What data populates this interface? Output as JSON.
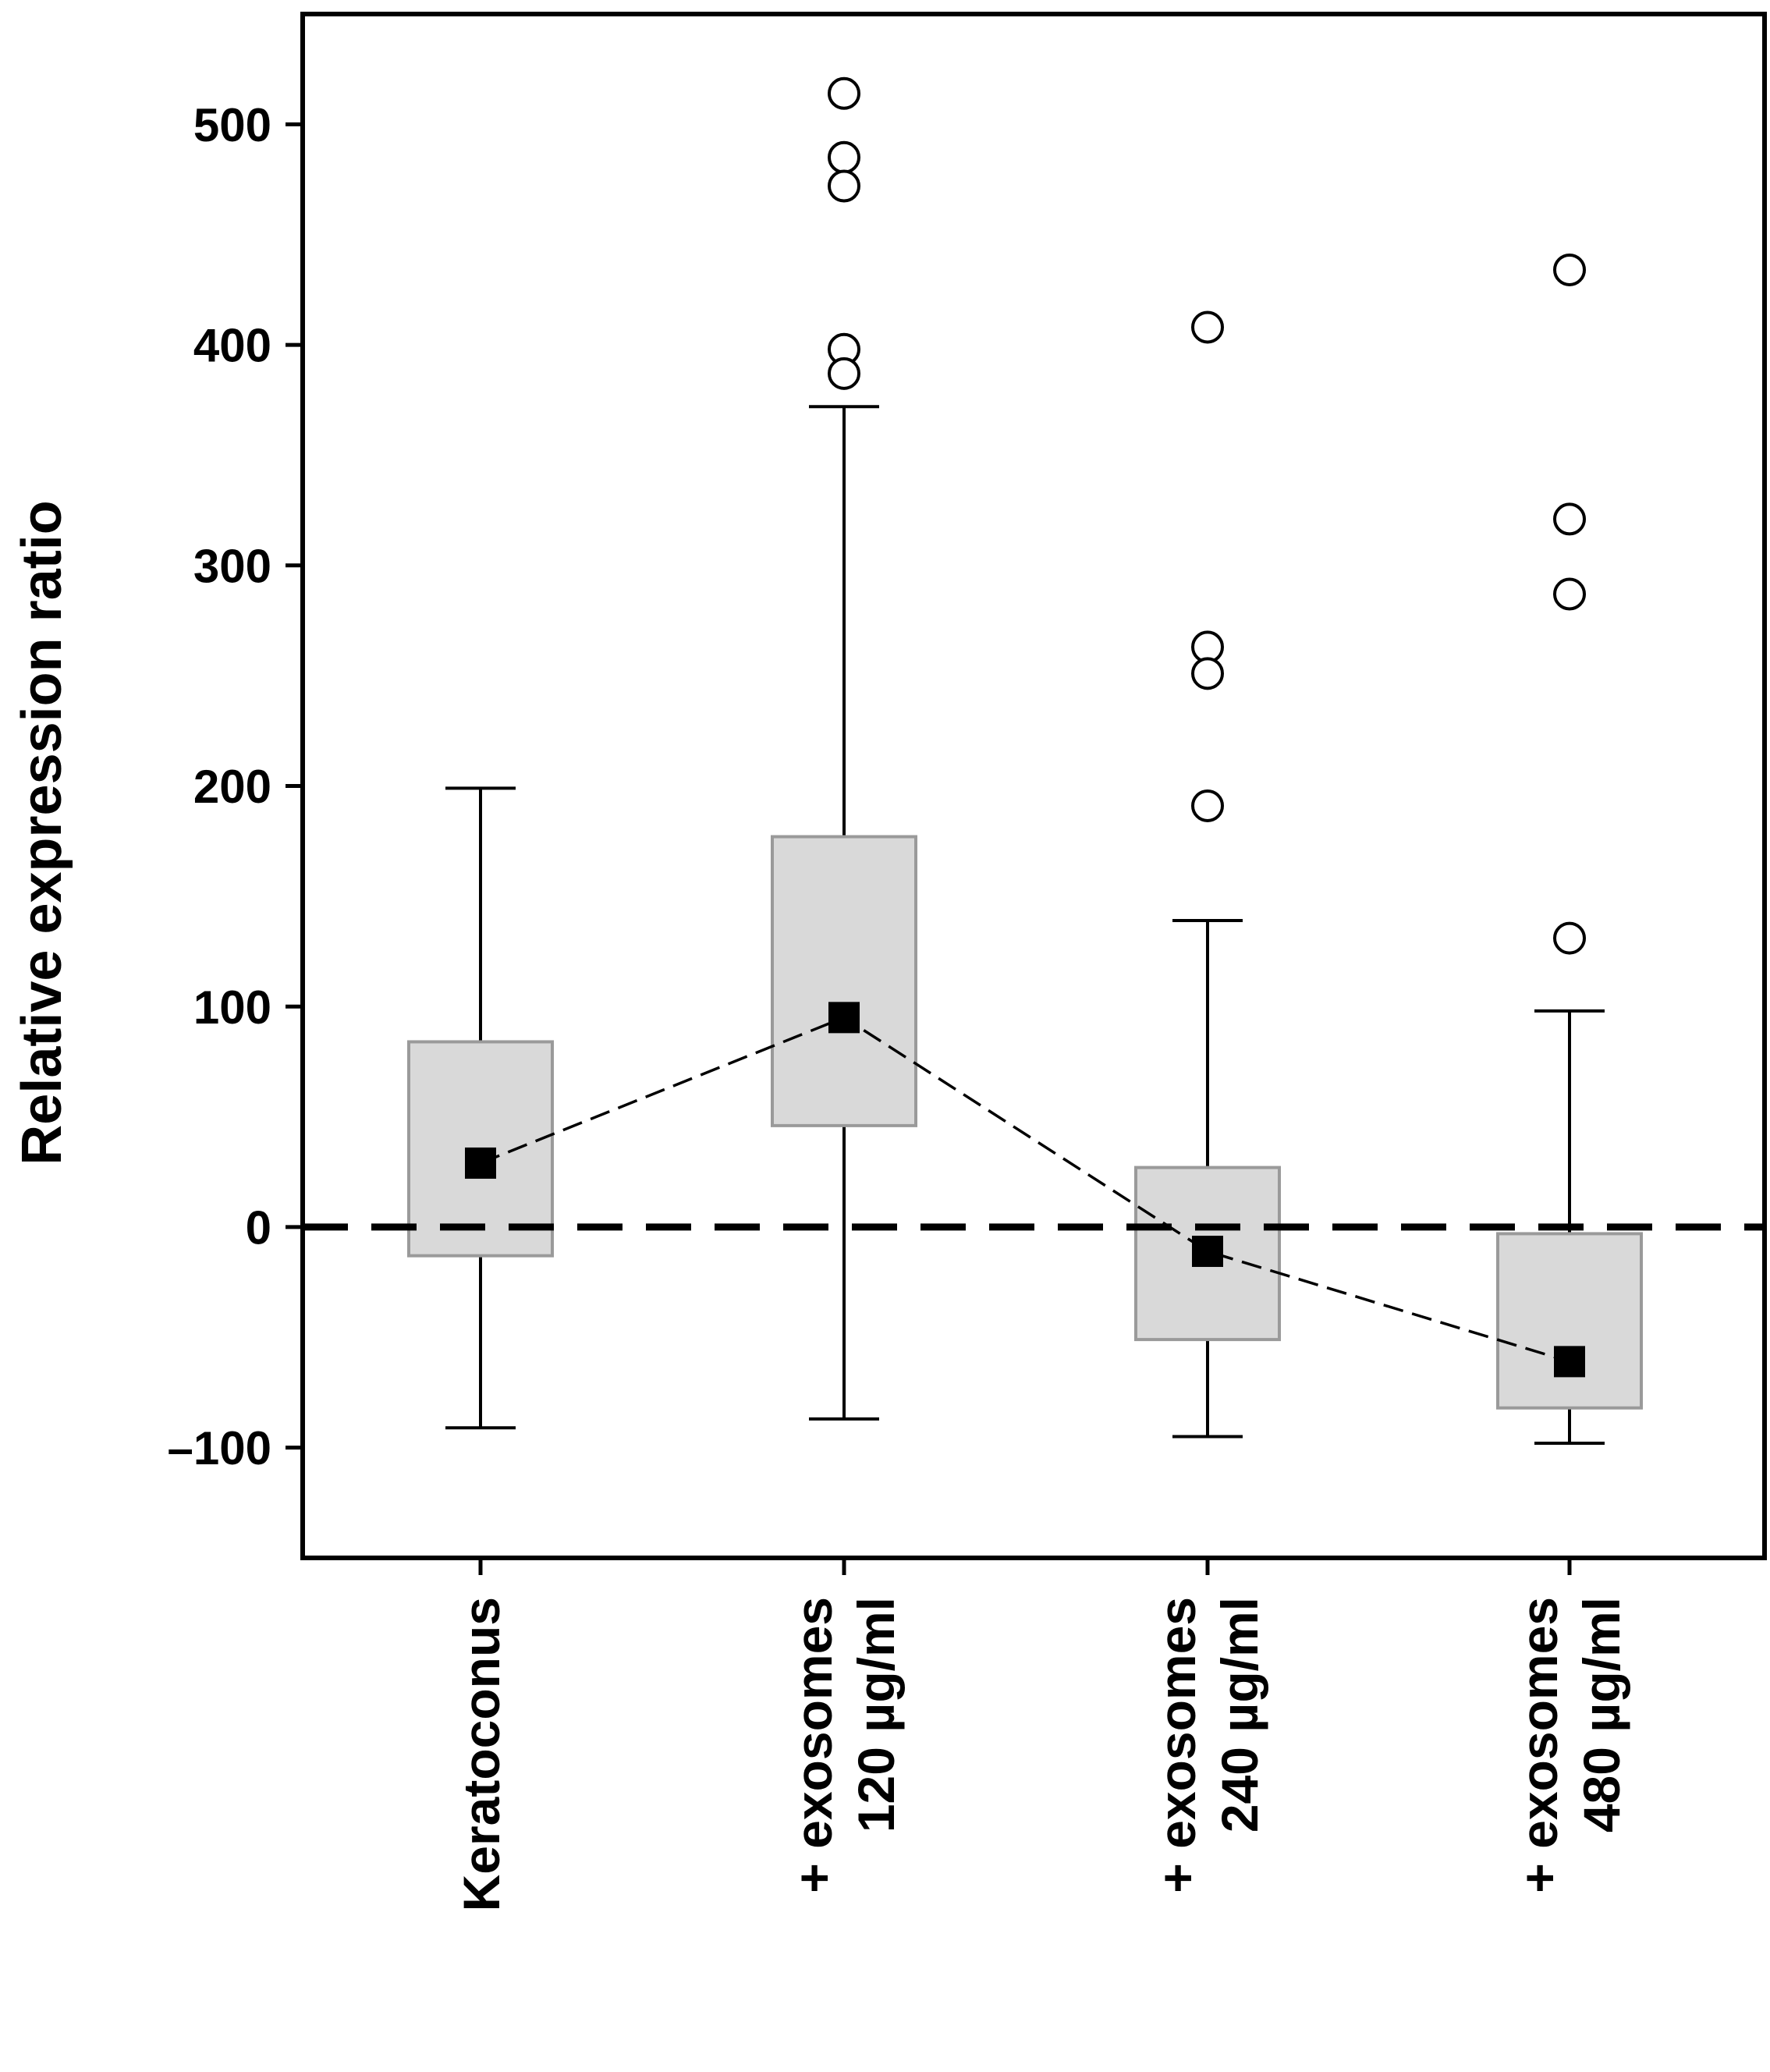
{
  "chart_data": {
    "type": "box",
    "title": "",
    "xlabel": "",
    "ylabel": "Relative expression ratio",
    "ylim": [
      -150,
      550
    ],
    "yticks": [
      -100,
      0,
      100,
      200,
      300,
      400,
      500
    ],
    "ytick_labels": [
      "–100",
      "0",
      "100",
      "200",
      "300",
      "400",
      "500"
    ],
    "grid": false,
    "reference_line": {
      "y": 0,
      "style": "dashed"
    },
    "groups": [
      {
        "label_lines": [
          "Keratoconus"
        ],
        "whisker_low": -91,
        "q1": -13,
        "q3": 84,
        "whisker_high": 199,
        "mean": 29,
        "outliers": []
      },
      {
        "label_lines": [
          "+ exosomes",
          "120 µg/ml"
        ],
        "whisker_low": -87,
        "q1": 46,
        "q3": 177,
        "whisker_high": 372,
        "mean": 95,
        "outliers": [
          514,
          485,
          472,
          398,
          387
        ]
      },
      {
        "label_lines": [
          "+ exosomes",
          "240 µg/ml"
        ],
        "whisker_low": -95,
        "q1": -51,
        "q3": 27,
        "whisker_high": 139,
        "mean": -11,
        "outliers": [
          408,
          263,
          251,
          191
        ]
      },
      {
        "label_lines": [
          "+ exosomes",
          "480 µg/ml"
        ],
        "whisker_low": -98,
        "q1": -82,
        "q3": -3,
        "whisker_high": 98,
        "mean": -61,
        "outliers": [
          434,
          321,
          287,
          131
        ]
      }
    ],
    "mean_line": {
      "style": "dashed",
      "marker": "square"
    },
    "colors": {
      "box_fill": "#d9d9d9",
      "box_stroke": "#9a9a9a",
      "ink": "#000000",
      "outlier_fill": "#ffffff"
    }
  }
}
